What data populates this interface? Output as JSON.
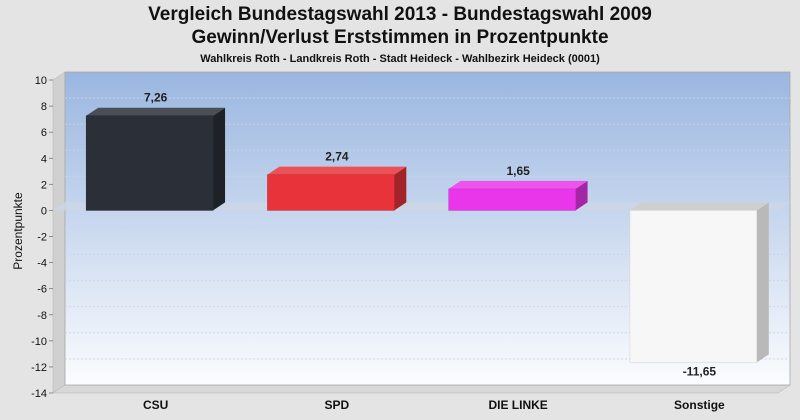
{
  "chart_data": {
    "type": "bar",
    "title": "Vergleich Bundestagswahl 2013  - Bundestagswahl 2009",
    "subtitle": "Gewinn/Verlust Erststimmen in Prozentpunkte",
    "subtitle2": "Wahlkreis Roth - Landkreis Roth - Stadt Heideck - Wahlbezirk Heideck (0001)",
    "xlabel": "",
    "ylabel": "Prozentpunkte",
    "ylim": [
      -14,
      10
    ],
    "yticks": [
      10,
      8,
      6,
      4,
      2,
      0,
      -2,
      -4,
      -6,
      -8,
      -10,
      -12,
      -14
    ],
    "categories": [
      "CSU",
      "SPD",
      "DIE LINKE",
      "Sonstige"
    ],
    "values": [
      7.26,
      2.74,
      1.65,
      -11.65
    ],
    "value_labels": [
      "7,26",
      "2,74",
      "1,65",
      "-11,65"
    ],
    "colors": [
      "#2b2f38",
      "#e8333a",
      "#ea36ea",
      "#f7f7f7"
    ],
    "grid": true,
    "legend": "none"
  }
}
